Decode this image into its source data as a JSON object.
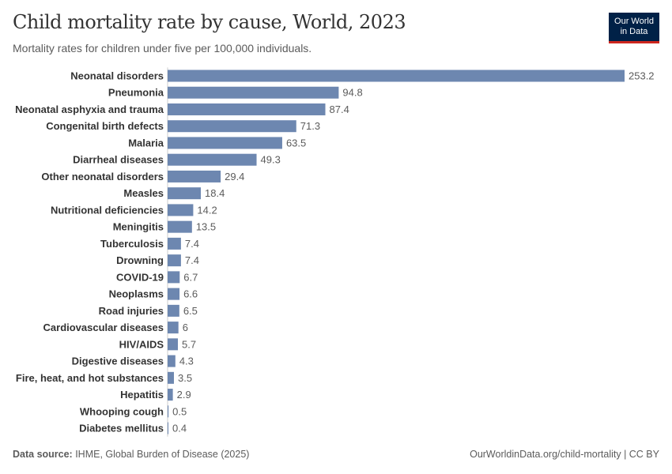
{
  "header": {
    "title": "Child mortality rate by cause, World, 2023",
    "subtitle": "Mortality rates for children under five per 100,000 individuals.",
    "logo_line1": "Our World",
    "logo_line2": "in Data"
  },
  "footer": {
    "source_label": "Data source:",
    "source": " IHME, Global Burden of Disease (2025)",
    "url": "OurWorldinData.org/child-mortality | CC BY"
  },
  "colors": {
    "bar": "#6d87b0",
    "logo_bg": "#002147",
    "logo_accent": "#ce261e"
  },
  "chart_data": {
    "type": "bar",
    "orientation": "horizontal",
    "title": "Child mortality rate by cause, World, 2023",
    "categories": [
      "Neonatal disorders",
      "Pneumonia",
      "Neonatal asphyxia and trauma",
      "Congenital birth defects",
      "Malaria",
      "Diarrheal diseases",
      "Other neonatal disorders",
      "Measles",
      "Nutritional deficiencies",
      "Meningitis",
      "Tuberculosis",
      "Drowning",
      "COVID-19",
      "Neoplasms",
      "Road injuries",
      "Cardiovascular diseases",
      "HIV/AIDS",
      "Digestive diseases",
      "Fire, heat, and hot substances",
      "Hepatitis",
      "Whooping cough",
      "Diabetes mellitus"
    ],
    "values": [
      253.2,
      94.8,
      87.4,
      71.3,
      63.5,
      49.3,
      29.4,
      18.4,
      14.2,
      13.5,
      7.4,
      7.4,
      6.7,
      6.6,
      6.5,
      6,
      5.7,
      4.3,
      3.5,
      2.9,
      0.5,
      0.4
    ],
    "value_labels": [
      "253.2",
      "94.8",
      "87.4",
      "71.3",
      "63.5",
      "49.3",
      "29.4",
      "18.4",
      "14.2",
      "13.5",
      "7.4",
      "7.4",
      "6.7",
      "6.6",
      "6.5",
      "6",
      "5.7",
      "4.3",
      "3.5",
      "2.9",
      "0.5",
      "0.4"
    ],
    "xlim": [
      0,
      253.2
    ],
    "grid": false,
    "legend": "none"
  }
}
